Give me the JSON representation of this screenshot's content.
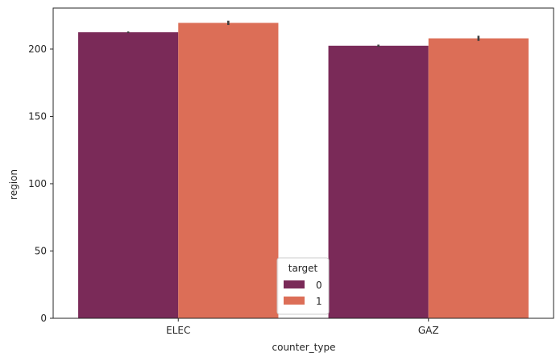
{
  "chart_data": {
    "type": "bar",
    "categories": [
      "ELEC",
      "GAZ"
    ],
    "series": [
      {
        "name": "0",
        "values": [
          212.5,
          202.5
        ],
        "error": [
          0.6,
          0.8
        ],
        "color": "#7a2a58"
      },
      {
        "name": "1",
        "values": [
          219.5,
          208.0
        ],
        "error": [
          1.6,
          1.9
        ],
        "color": "#dc6e57"
      }
    ],
    "xlabel": "counter_type",
    "ylabel": "region",
    "ylim": [
      0,
      230.5
    ],
    "yticks": [
      0,
      50,
      100,
      150,
      200
    ],
    "legend": {
      "title": "target",
      "placement": "bottom-center"
    },
    "grid": false
  }
}
